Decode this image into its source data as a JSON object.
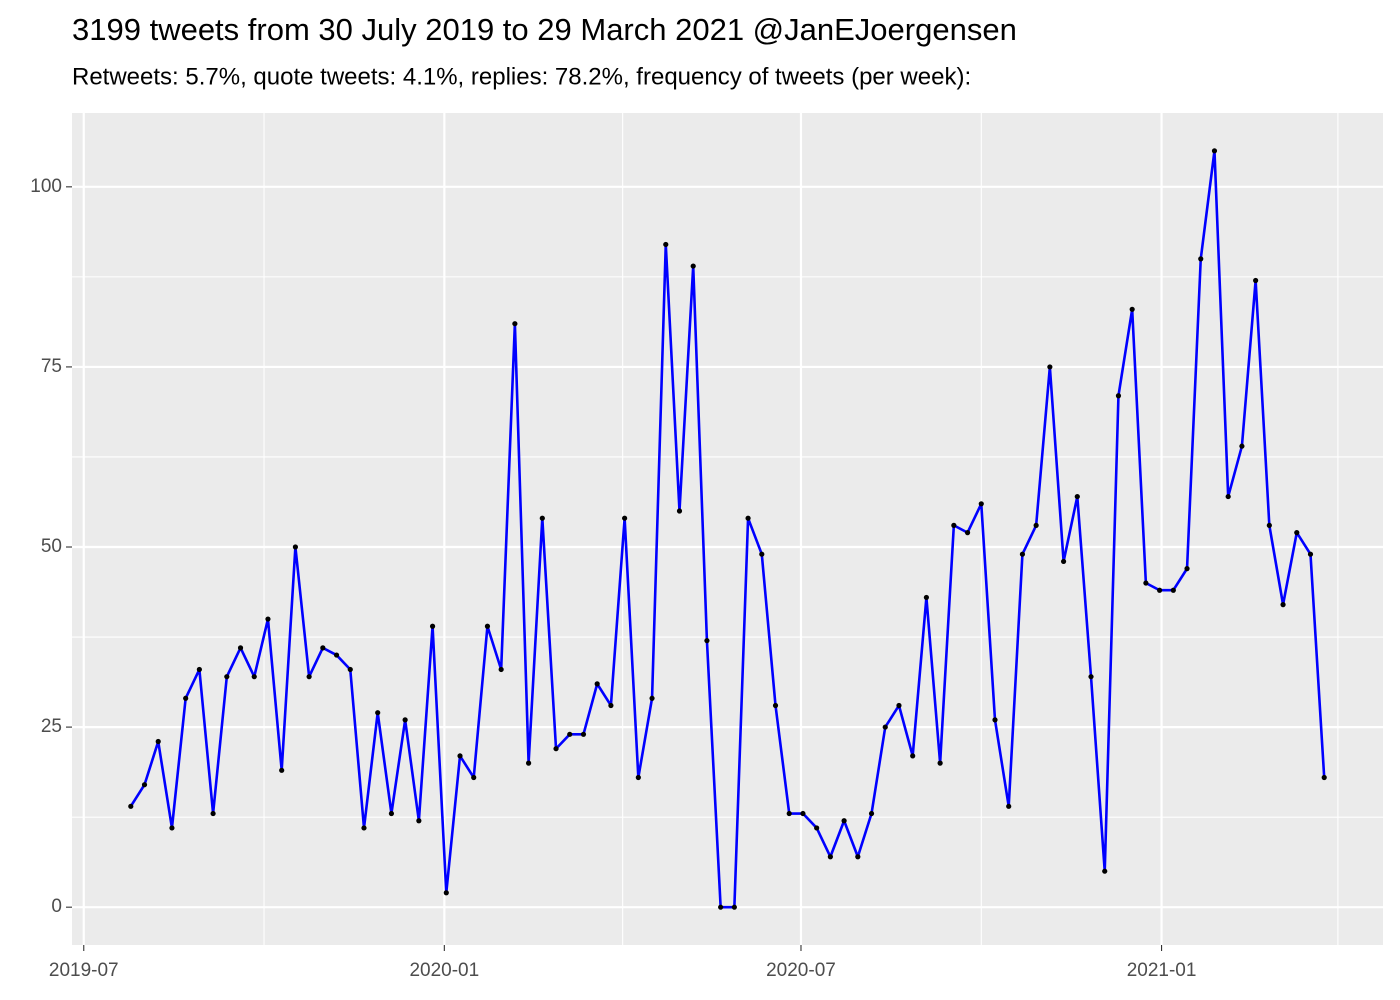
{
  "chart_data": {
    "type": "line",
    "title": "3199 tweets from 30 July 2019 to 29 March 2021 @JanEJoergensen",
    "subtitle": "Retweets: 5.7%, quote tweets: 4.1%, replies: 78.2%, frequency of tweets (per week):",
    "x": [
      "2019-07-25",
      "2019-08-01",
      "2019-08-08",
      "2019-08-15",
      "2019-08-22",
      "2019-08-29",
      "2019-09-05",
      "2019-09-12",
      "2019-09-19",
      "2019-09-26",
      "2019-10-03",
      "2019-10-10",
      "2019-10-17",
      "2019-10-24",
      "2019-10-31",
      "2019-11-07",
      "2019-11-14",
      "2019-11-21",
      "2019-11-28",
      "2019-12-05",
      "2019-12-12",
      "2019-12-19",
      "2019-12-26",
      "2020-01-02",
      "2020-01-09",
      "2020-01-16",
      "2020-01-23",
      "2020-01-30",
      "2020-02-06",
      "2020-02-13",
      "2020-02-20",
      "2020-02-27",
      "2020-03-05",
      "2020-03-12",
      "2020-03-19",
      "2020-03-26",
      "2020-04-02",
      "2020-04-09",
      "2020-04-16",
      "2020-04-23",
      "2020-04-30",
      "2020-05-07",
      "2020-05-14",
      "2020-05-21",
      "2020-05-28",
      "2020-06-04",
      "2020-06-11",
      "2020-06-18",
      "2020-06-25",
      "2020-07-02",
      "2020-07-09",
      "2020-07-16",
      "2020-07-23",
      "2020-07-30",
      "2020-08-06",
      "2020-08-13",
      "2020-08-20",
      "2020-08-27",
      "2020-09-03",
      "2020-09-10",
      "2020-09-17",
      "2020-09-24",
      "2020-10-01",
      "2020-10-08",
      "2020-10-15",
      "2020-10-22",
      "2020-10-29",
      "2020-11-05",
      "2020-11-12",
      "2020-11-19",
      "2020-11-26",
      "2020-12-03",
      "2020-12-10",
      "2020-12-17",
      "2020-12-24",
      "2020-12-31",
      "2021-01-07",
      "2021-01-14",
      "2021-01-21",
      "2021-01-28",
      "2021-02-04",
      "2021-02-11",
      "2021-02-18",
      "2021-02-25",
      "2021-03-04",
      "2021-03-11",
      "2021-03-18",
      "2021-03-25"
    ],
    "series": [
      {
        "color": "#0000ff",
        "point_color": "#000000",
        "values": [
          14,
          17,
          23,
          11,
          29,
          33,
          13,
          32,
          36,
          32,
          40,
          19,
          50,
          32,
          36,
          35,
          33,
          11,
          27,
          13,
          26,
          12,
          39,
          2,
          21,
          18,
          39,
          33,
          81,
          20,
          54,
          22,
          24,
          24,
          31,
          28,
          54,
          18,
          29,
          92,
          55,
          89,
          37,
          0,
          0,
          54,
          49,
          28,
          13,
          13,
          11,
          7,
          12,
          7,
          13,
          25,
          28,
          21,
          43,
          20,
          53,
          52,
          56,
          26,
          14,
          49,
          53,
          75,
          48,
          57,
          32,
          5,
          71,
          83,
          45,
          44,
          44,
          47,
          90,
          105,
          57,
          64,
          87,
          53,
          42,
          52,
          49,
          18
        ]
      }
    ],
    "xlim": [
      "2019-06-25",
      "2021-04-24"
    ],
    "xticks": [
      {
        "value": "2019-07-01",
        "label": "2019-07"
      },
      {
        "value": "2020-01-01",
        "label": "2020-01"
      },
      {
        "value": "2020-07-01",
        "label": "2020-07"
      },
      {
        "value": "2021-01-01",
        "label": "2021-01"
      }
    ],
    "minor_xticks": [
      "2019-10-01",
      "2020-04-01",
      "2020-10-01",
      "2021-04-01"
    ],
    "ylim": [
      -5.25,
      110.25
    ],
    "yticks": [
      0,
      25,
      50,
      75,
      100
    ],
    "minor_yticks": [
      12.5,
      37.5,
      62.5,
      87.5
    ],
    "grid": true
  }
}
